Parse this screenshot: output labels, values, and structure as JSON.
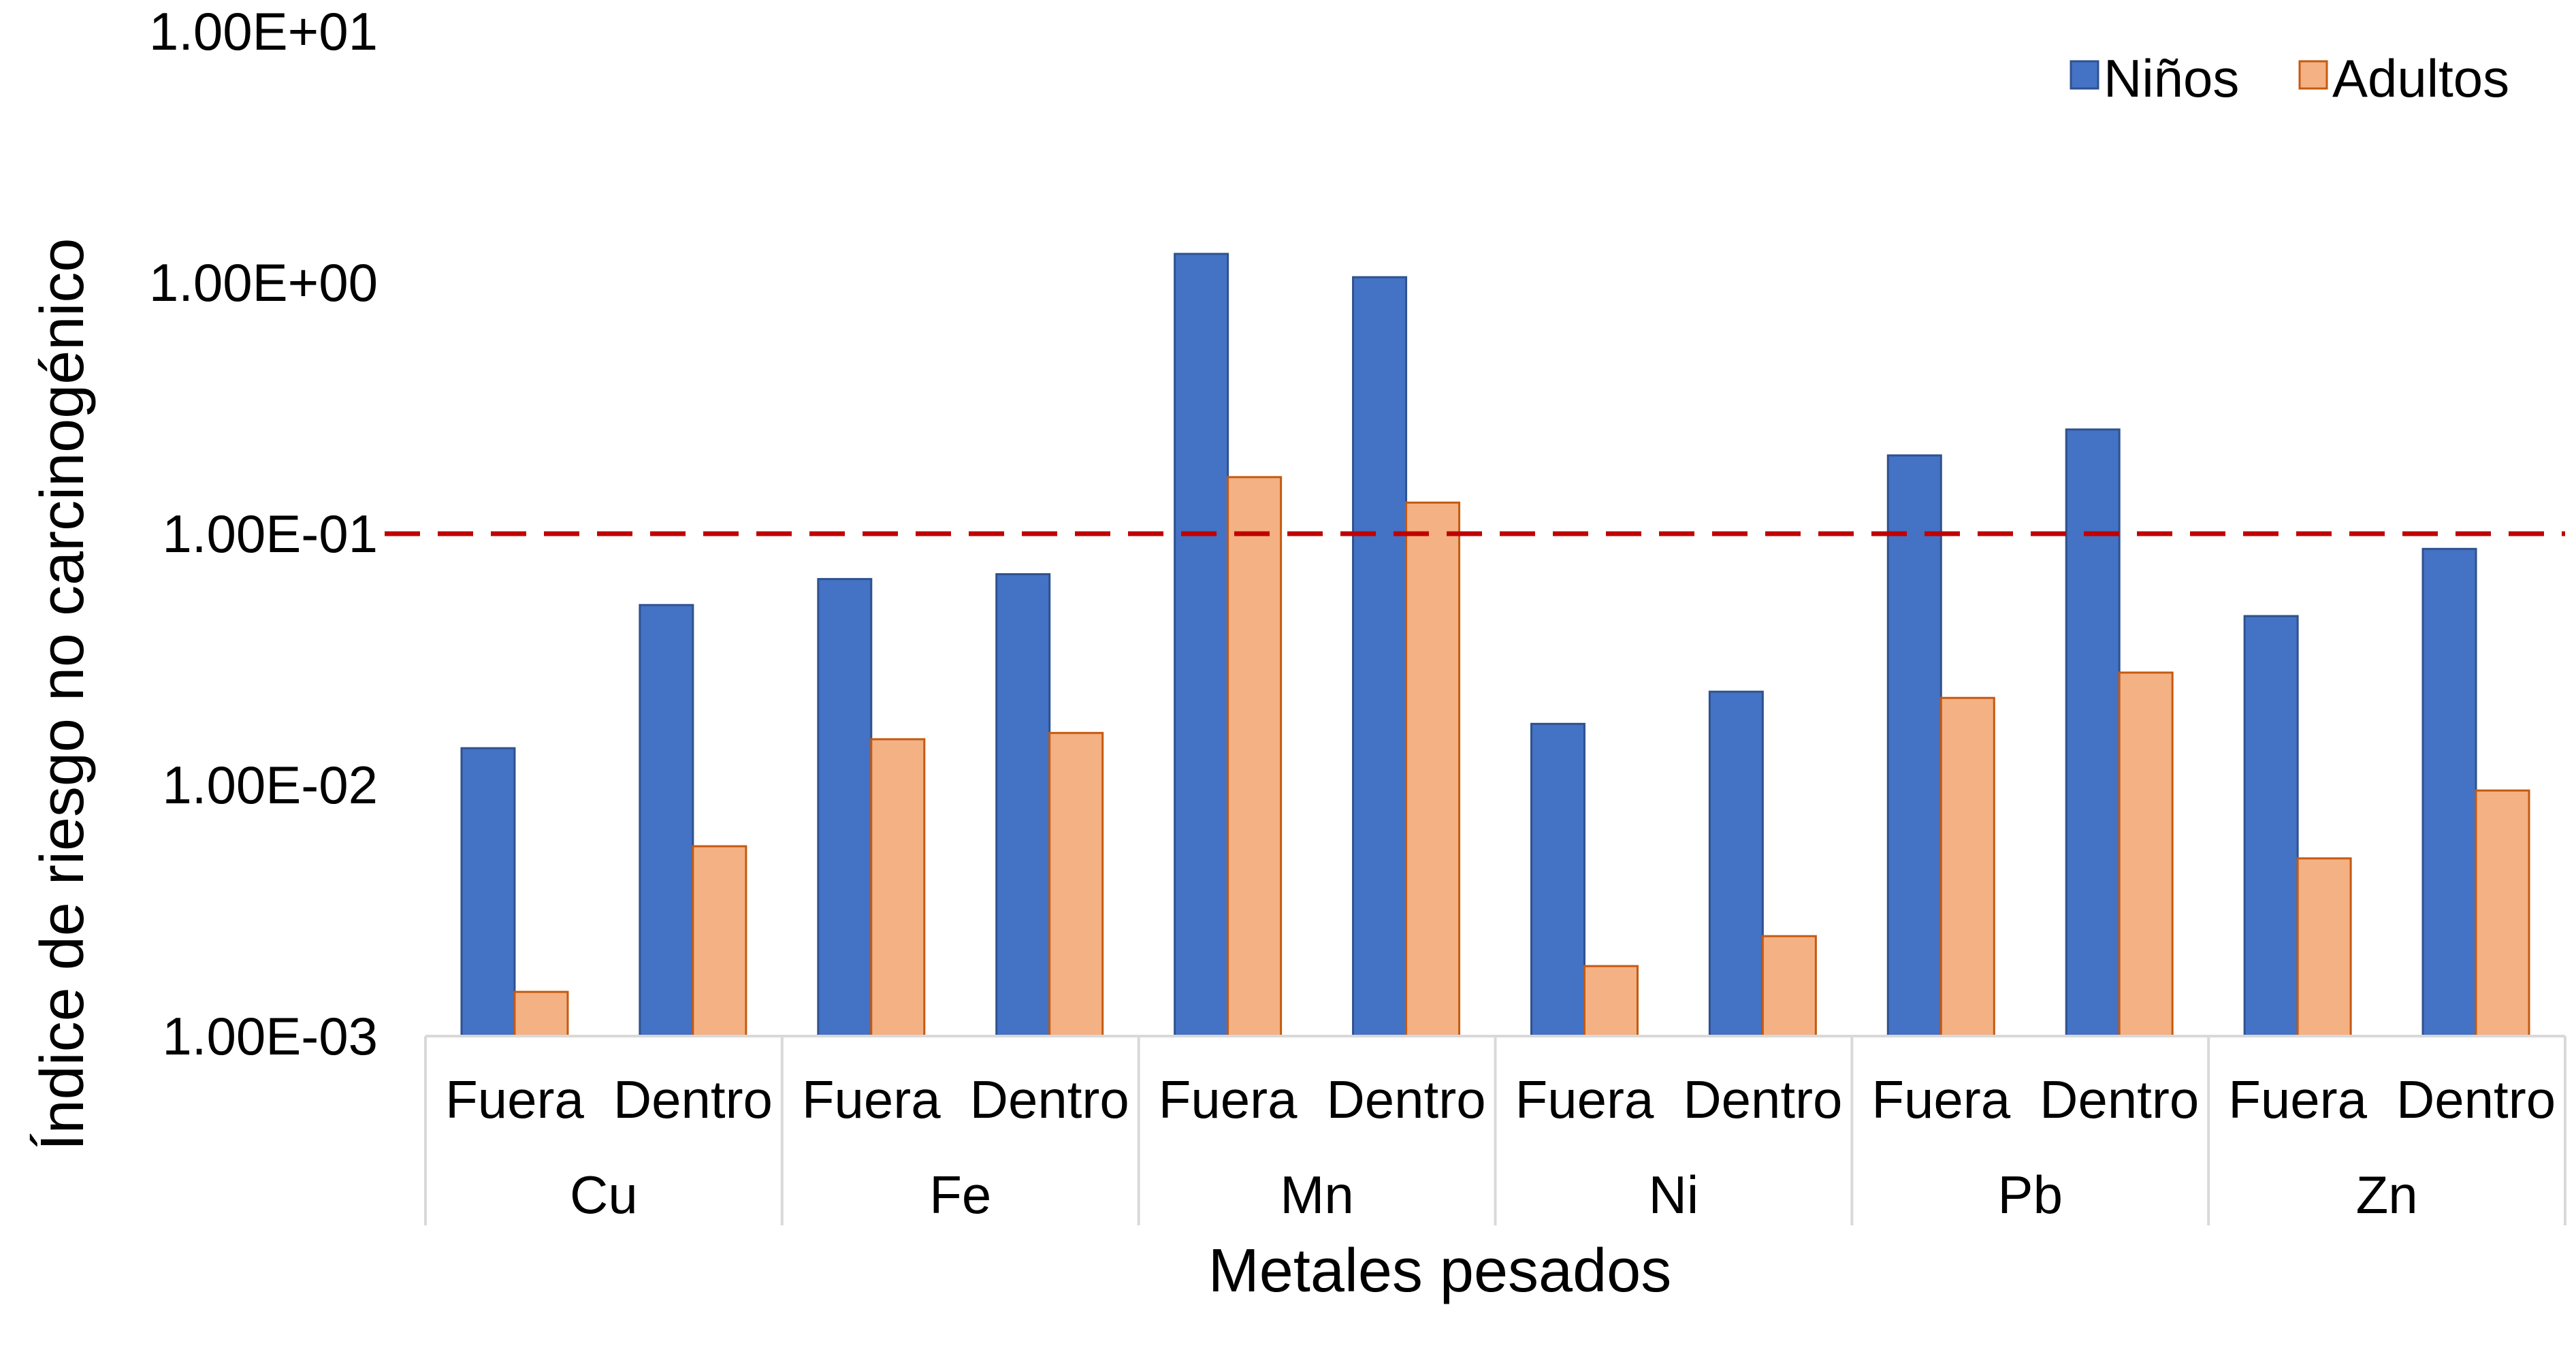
{
  "chart_data": {
    "type": "bar",
    "title": "",
    "xlabel": "Metales pesados",
    "ylabel": "Índice de riesgo no carcinogénico",
    "yscale": "log",
    "ylim": [
      0.001,
      10
    ],
    "yticks": [
      "1.00E-03",
      "1.00E-02",
      "1.00E-01",
      "1.00E+00",
      "1.00E+01"
    ],
    "groups": [
      {
        "name": "Cu",
        "subcategories": [
          "Fuera",
          "Dentro"
        ]
      },
      {
        "name": "Fe",
        "subcategories": [
          "Fuera",
          "Dentro"
        ]
      },
      {
        "name": "Mn",
        "subcategories": [
          "Fuera",
          "Dentro"
        ]
      },
      {
        "name": "Ni",
        "subcategories": [
          "Fuera",
          "Dentro"
        ]
      },
      {
        "name": "Pb",
        "subcategories": [
          "Fuera",
          "Dentro"
        ]
      },
      {
        "name": "Zn",
        "subcategories": [
          "Fuera",
          "Dentro"
        ]
      }
    ],
    "series": [
      {
        "name": "Niños",
        "color": "#4472c4",
        "values": [
          0.014,
          0.052,
          0.066,
          0.069,
          1.3,
          1.05,
          0.0175,
          0.0235,
          0.205,
          0.26,
          0.047,
          0.087
        ]
      },
      {
        "name": "Adultos",
        "color": "#f4b183",
        "values": [
          0.0015,
          0.0057,
          0.0152,
          0.0161,
          0.168,
          0.133,
          0.0019,
          0.0025,
          0.0222,
          0.028,
          0.0051,
          0.0095
        ]
      }
    ],
    "reference_line": {
      "value": 0.1,
      "color": "#c00000",
      "style": "dashed"
    },
    "grid": false,
    "legend": "top-right"
  }
}
